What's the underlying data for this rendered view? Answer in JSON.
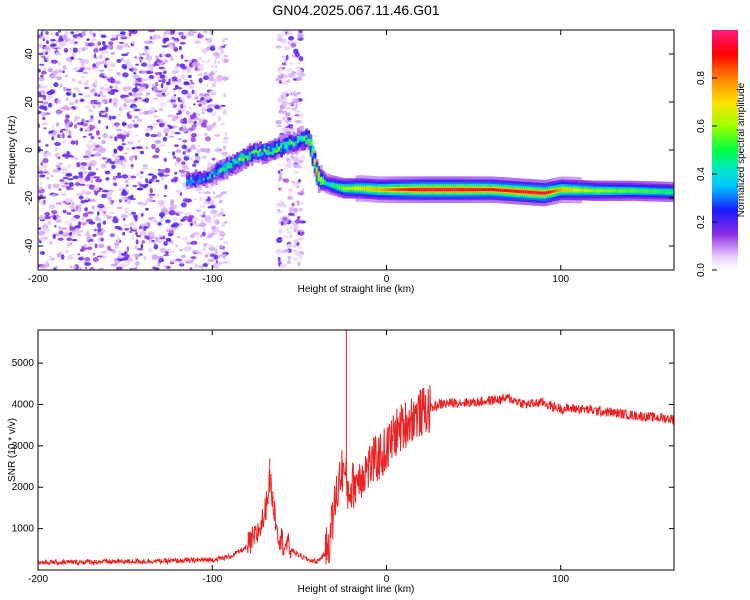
{
  "title": "GN04.2025.067.11.46.G01",
  "colors": {
    "snr_line": "#ee2222",
    "spectrogram_noise": "#6a1fe0",
    "ridge_peak": "#e3003a"
  },
  "chart_data": [
    {
      "type": "heatmap",
      "xlabel": "Height of straight line (km)",
      "ylabel": "Frequency (Hz)",
      "xlim": [
        -200,
        165
      ],
      "ylim": [
        -50,
        50
      ],
      "xticks": [
        -200,
        -100,
        0,
        100
      ],
      "yticks": [
        -40,
        -20,
        0,
        20,
        40
      ],
      "grid": false,
      "colorbar": {
        "label": "Normalized spectral amplitude",
        "range": [
          0,
          1
        ],
        "ticks": [
          "0.0",
          "0.2",
          "0.4",
          "0.6",
          "0.8"
        ],
        "tick_values": [
          0,
          0.2,
          0.4,
          0.6,
          0.8
        ],
        "colormap": "hsv-reversed (purple-blue-cyan-green-yellow-red-pink)"
      },
      "ridge": [
        {
          "x": -115,
          "f": -13,
          "a": 0.35
        },
        {
          "x": -105,
          "f": -12,
          "a": 0.3
        },
        {
          "x": -95,
          "f": -8,
          "a": 0.45
        },
        {
          "x": -85,
          "f": -4,
          "a": 0.5
        },
        {
          "x": -75,
          "f": -1,
          "a": 0.45
        },
        {
          "x": -65,
          "f": 0,
          "a": 0.5
        },
        {
          "x": -55,
          "f": 3,
          "a": 0.45
        },
        {
          "x": -45,
          "f": 5,
          "a": 0.5
        },
        {
          "x": -40,
          "f": -11,
          "a": 0.9
        },
        {
          "x": -35,
          "f": -14,
          "a": 0.4
        },
        {
          "x": -25,
          "f": -16,
          "a": 0.6
        },
        {
          "x": -15,
          "f": -16,
          "a": 0.7
        },
        {
          "x": -5,
          "f": -16.5,
          "a": 0.75
        },
        {
          "x": 5,
          "f": -16.5,
          "a": 0.85
        },
        {
          "x": 20,
          "f": -16.5,
          "a": 0.95
        },
        {
          "x": 40,
          "f": -16.5,
          "a": 0.95
        },
        {
          "x": 60,
          "f": -16.5,
          "a": 0.9
        },
        {
          "x": 80,
          "f": -17.5,
          "a": 0.95
        },
        {
          "x": 90,
          "f": -18,
          "a": 0.95
        },
        {
          "x": 100,
          "f": -16.5,
          "a": 0.75
        },
        {
          "x": 120,
          "f": -17,
          "a": 0.6
        },
        {
          "x": 140,
          "f": -17,
          "a": 0.55
        },
        {
          "x": 165,
          "f": -17.5,
          "a": 0.5
        }
      ]
    },
    {
      "type": "line",
      "xlabel": "Height of straight line (km)",
      "ylabel": "SNR (10 * v/v)",
      "xlim": [
        -200,
        165
      ],
      "ylim": [
        0,
        5800
      ],
      "xticks": [
        -200,
        -100,
        0,
        100
      ],
      "yticks": [
        1000,
        2000,
        3000,
        4000,
        5000
      ],
      "grid": false,
      "series": [
        {
          "x": [
            -200,
            -180,
            -160,
            -140,
            -120,
            -100,
            -90,
            -80,
            -75,
            -70,
            -67,
            -65,
            -62,
            -60,
            -55,
            -50,
            -45,
            -40,
            -35,
            -32,
            -30,
            -27,
            -25,
            -22,
            -20,
            -15,
            -10,
            -5,
            0,
            5,
            10,
            15,
            20,
            25,
            30,
            40,
            50,
            60,
            70,
            80,
            90,
            95,
            100,
            110,
            120,
            130,
            140,
            150,
            165
          ],
          "values": [
            180,
            190,
            200,
            210,
            220,
            250,
            320,
            550,
            800,
            1300,
            2200,
            1600,
            900,
            700,
            500,
            350,
            250,
            200,
            400,
            900,
            1500,
            2200,
            2500,
            1900,
            2000,
            2300,
            2500,
            2700,
            2900,
            3300,
            3500,
            3700,
            3800,
            3900,
            4000,
            4050,
            4050,
            4100,
            4150,
            4000,
            4050,
            3950,
            3900,
            3900,
            3850,
            3800,
            3750,
            3700,
            3650
          ]
        }
      ],
      "spikes": [
        {
          "x": -67,
          "value": 2700
        },
        {
          "x": -23,
          "value": 5800
        }
      ]
    }
  ]
}
